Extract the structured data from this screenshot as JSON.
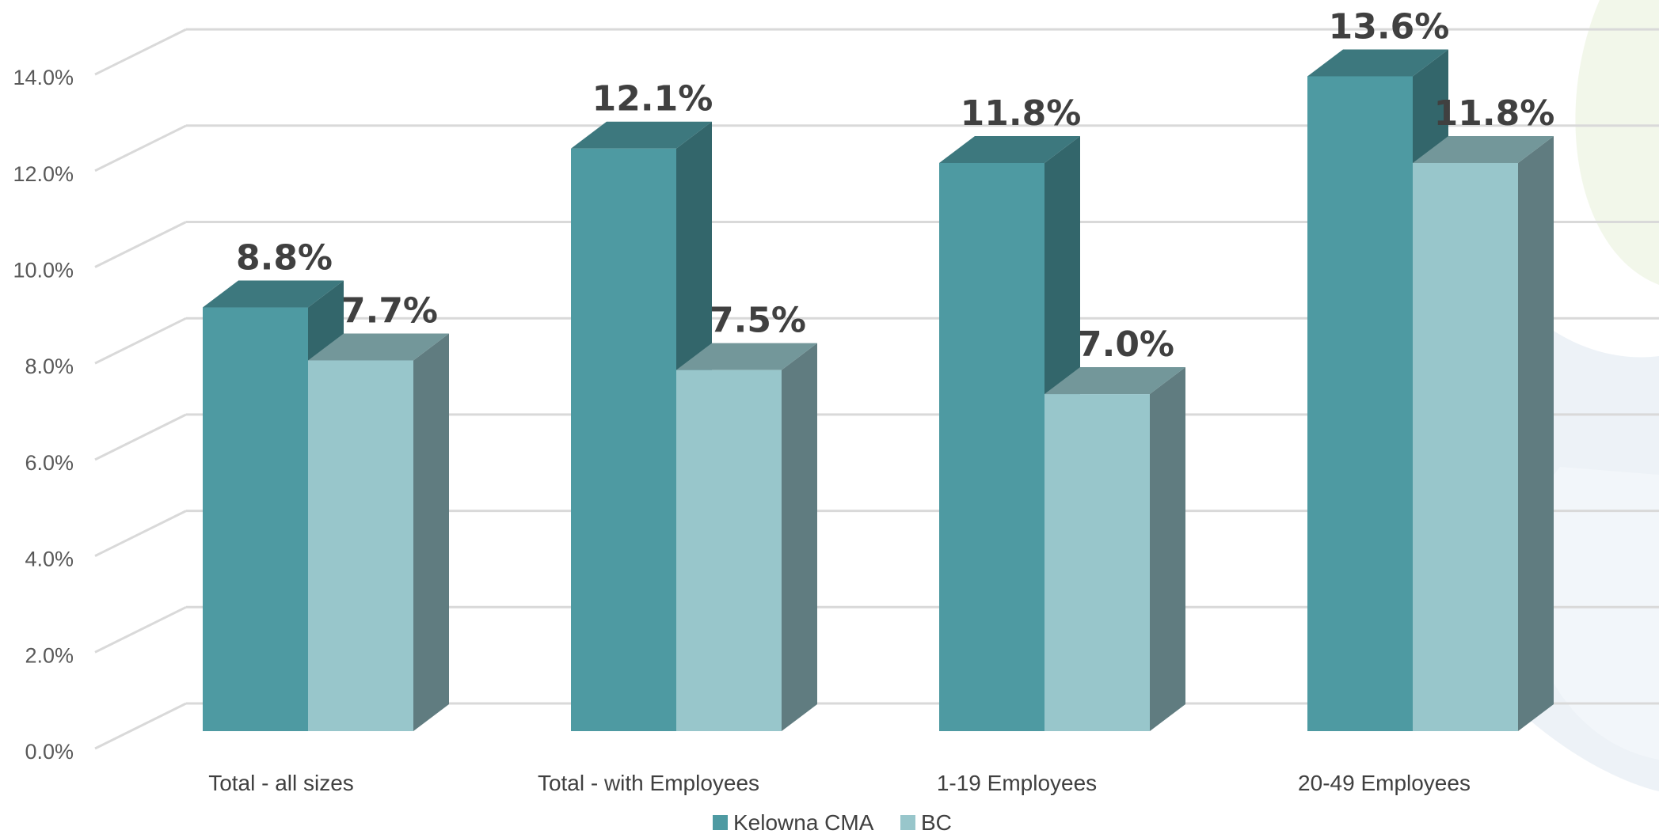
{
  "chart_data": {
    "type": "bar",
    "categories": [
      "Total - all sizes",
      "Total - with Employees",
      "1-19 Employees",
      "20-49 Employees"
    ],
    "series": [
      {
        "name": "Kelowna CMA",
        "values": [
          8.8,
          12.1,
          11.8,
          13.6
        ],
        "labels": [
          "8.8%",
          "12.1%",
          "11.8%",
          "13.6%"
        ]
      },
      {
        "name": "BC",
        "values": [
          7.7,
          7.5,
          7.0,
          11.8
        ],
        "labels": [
          "7.7%",
          "7.5%",
          "7.0%",
          "11.8%"
        ]
      }
    ],
    "yticks": [
      "0.0%",
      "2.0%",
      "4.0%",
      "6.0%",
      "8.0%",
      "10.0%",
      "12.0%",
      "14.0%"
    ],
    "ylim": [
      0,
      14
    ],
    "title": "",
    "xlabel": "",
    "ylabel": "",
    "grid": true,
    "legend": "bottom",
    "colors": {
      "series1_front": "#4e9aa2",
      "series1_side": "#33666b",
      "series1_top": "#3d787e",
      "series2_front": "#98c6cb",
      "series2_side": "#607c80",
      "series2_top": "#73979a",
      "grid": "#d9d9d9"
    }
  }
}
